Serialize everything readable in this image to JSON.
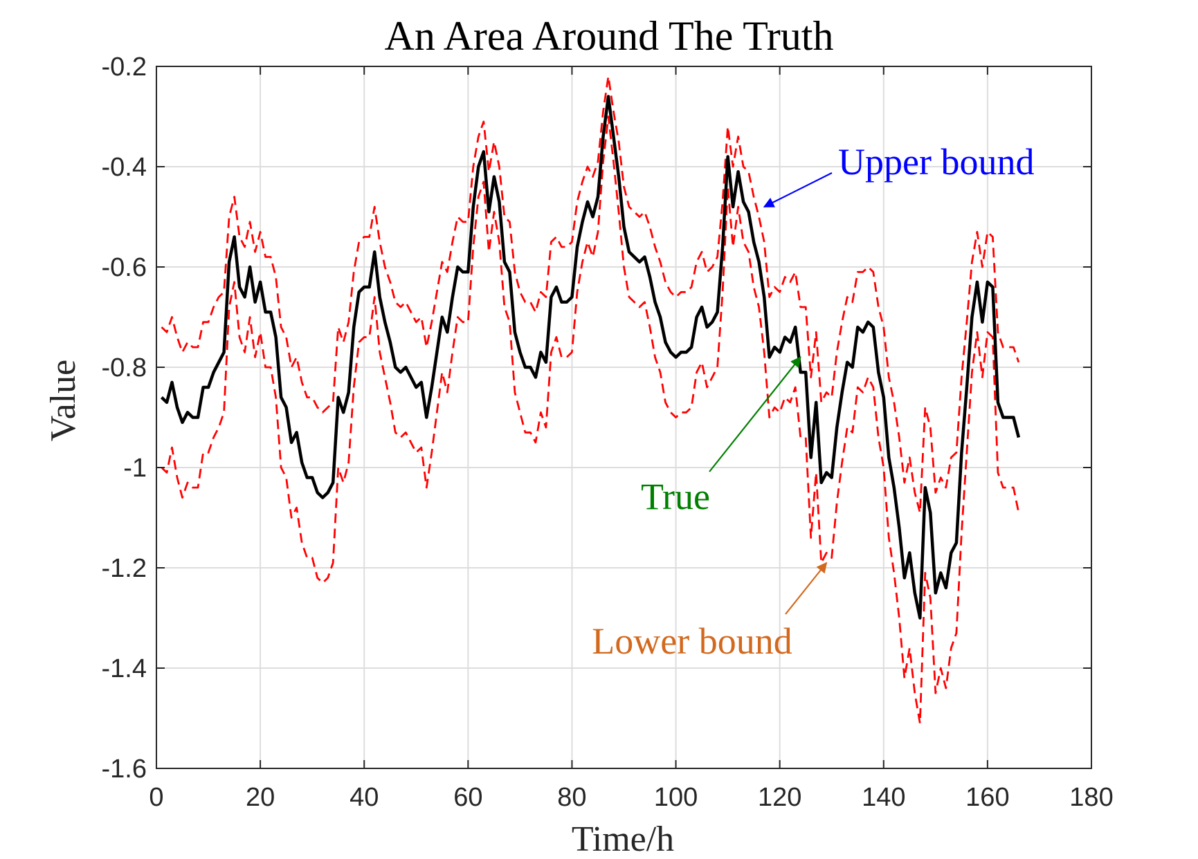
{
  "chart_data": {
    "type": "line",
    "title": "An Area Around The Truth",
    "xlabel": "Time/h",
    "ylabel": "Value",
    "xlim": [
      0,
      180
    ],
    "ylim": [
      -1.6,
      -0.2
    ],
    "xticks": [
      0,
      20,
      40,
      60,
      80,
      100,
      120,
      140,
      160,
      180
    ],
    "yticks": [
      -1.6,
      -1.4,
      -1.2,
      -1,
      -0.8,
      -0.6,
      -0.4,
      -0.2
    ],
    "xtick_labels": [
      "0",
      "20",
      "40",
      "60",
      "80",
      "100",
      "120",
      "140",
      "160",
      "180"
    ],
    "ytick_labels": [
      "-1.6",
      "-1.4",
      "-1.2",
      "-1",
      "-0.8",
      "-0.6",
      "-0.4",
      "-0.2"
    ],
    "grid": true,
    "colors": {
      "true": "#000000",
      "upper": "#ff0000",
      "lower": "#ff0000",
      "grid": "#dddddd"
    },
    "series": [
      {
        "id": "true",
        "style": "solid",
        "values": [
          -0.86,
          -0.87,
          -0.83,
          -0.88,
          -0.91,
          -0.89,
          -0.9,
          -0.9,
          -0.84,
          -0.84,
          -0.81,
          -0.79,
          -0.77,
          -0.59,
          -0.54,
          -0.64,
          -0.66,
          -0.6,
          -0.67,
          -0.63,
          -0.69,
          -0.69,
          -0.74,
          -0.86,
          -0.88,
          -0.95,
          -0.93,
          -0.99,
          -1.02,
          -1.02,
          -1.05,
          -1.06,
          -1.05,
          -1.03,
          -0.86,
          -0.89,
          -0.85,
          -0.72,
          -0.65,
          -0.64,
          -0.64,
          -0.57,
          -0.66,
          -0.71,
          -0.75,
          -0.8,
          -0.81,
          -0.8,
          -0.82,
          -0.84,
          -0.83,
          -0.9,
          -0.84,
          -0.77,
          -0.7,
          -0.73,
          -0.66,
          -0.6,
          -0.61,
          -0.61,
          -0.48,
          -0.4,
          -0.37,
          -0.49,
          -0.42,
          -0.47,
          -0.59,
          -0.61,
          -0.73,
          -0.77,
          -0.8,
          -0.8,
          -0.82,
          -0.77,
          -0.79,
          -0.66,
          -0.64,
          -0.67,
          -0.67,
          -0.66,
          -0.56,
          -0.51,
          -0.47,
          -0.5,
          -0.46,
          -0.34,
          -0.26,
          -0.34,
          -0.42,
          -0.52,
          -0.57,
          -0.58,
          -0.59,
          -0.58,
          -0.62,
          -0.67,
          -0.7,
          -0.75,
          -0.77,
          -0.78,
          -0.77,
          -0.77,
          -0.76,
          -0.7,
          -0.68,
          -0.72,
          -0.71,
          -0.69,
          -0.56,
          -0.38,
          -0.48,
          -0.41,
          -0.47,
          -0.49,
          -0.55,
          -0.59,
          -0.66,
          -0.78,
          -0.76,
          -0.77,
          -0.74,
          -0.75,
          -0.72,
          -0.81,
          -0.81,
          -0.98,
          -0.87,
          -1.03,
          -1.01,
          -1.02,
          -0.92,
          -0.85,
          -0.79,
          -0.8,
          -0.72,
          -0.73,
          -0.71,
          -0.72,
          -0.81,
          -0.86,
          -0.98,
          -1.04,
          -1.12,
          -1.22,
          -1.17,
          -1.25,
          -1.3,
          -1.04,
          -1.09,
          -1.25,
          -1.21,
          -1.24,
          -1.17,
          -1.15,
          -0.97,
          -0.84,
          -0.7,
          -0.63,
          -0.71,
          -0.63,
          -0.64,
          -0.87,
          -0.9,
          -0.9,
          -0.9,
          -0.94
        ]
      },
      {
        "id": "upper",
        "style": "dashed",
        "values": [
          -0.72,
          -0.73,
          -0.7,
          -0.74,
          -0.77,
          -0.75,
          -0.76,
          -0.76,
          -0.71,
          -0.71,
          -0.68,
          -0.66,
          -0.65,
          -0.5,
          -0.46,
          -0.54,
          -0.56,
          -0.51,
          -0.57,
          -0.53,
          -0.58,
          -0.58,
          -0.62,
          -0.72,
          -0.74,
          -0.8,
          -0.78,
          -0.83,
          -0.86,
          -0.86,
          -0.88,
          -0.89,
          -0.88,
          -0.87,
          -0.72,
          -0.75,
          -0.71,
          -0.61,
          -0.55,
          -0.54,
          -0.54,
          -0.48,
          -0.55,
          -0.6,
          -0.63,
          -0.67,
          -0.68,
          -0.67,
          -0.69,
          -0.71,
          -0.7,
          -0.76,
          -0.71,
          -0.65,
          -0.59,
          -0.61,
          -0.55,
          -0.5,
          -0.51,
          -0.51,
          -0.4,
          -0.34,
          -0.31,
          -0.41,
          -0.35,
          -0.4,
          -0.5,
          -0.51,
          -0.61,
          -0.65,
          -0.67,
          -0.67,
          -0.69,
          -0.65,
          -0.66,
          -0.55,
          -0.54,
          -0.56,
          -0.56,
          -0.55,
          -0.47,
          -0.43,
          -0.4,
          -0.42,
          -0.39,
          -0.29,
          -0.22,
          -0.29,
          -0.35,
          -0.44,
          -0.48,
          -0.49,
          -0.5,
          -0.49,
          -0.52,
          -0.56,
          -0.59,
          -0.63,
          -0.65,
          -0.66,
          -0.65,
          -0.65,
          -0.64,
          -0.59,
          -0.57,
          -0.61,
          -0.6,
          -0.58,
          -0.47,
          -0.32,
          -0.4,
          -0.34,
          -0.4,
          -0.41,
          -0.46,
          -0.5,
          -0.55,
          -0.66,
          -0.64,
          -0.65,
          -0.62,
          -0.63,
          -0.61,
          -0.68,
          -0.68,
          -0.82,
          -0.73,
          -0.87,
          -0.85,
          -0.86,
          -0.77,
          -0.71,
          -0.66,
          -0.67,
          -0.61,
          -0.61,
          -0.6,
          -0.61,
          -0.68,
          -0.72,
          -0.82,
          -0.87,
          -0.94,
          -1.03,
          -0.98,
          -1.05,
          -1.09,
          -0.88,
          -0.92,
          -1.05,
          -1.02,
          -1.04,
          -0.98,
          -0.97,
          -0.82,
          -0.71,
          -0.59,
          -0.53,
          -0.6,
          -0.53,
          -0.54,
          -0.73,
          -0.76,
          -0.76,
          -0.76,
          -0.79
        ]
      },
      {
        "id": "lower",
        "style": "dashed",
        "values": [
          -1.0,
          -1.01,
          -0.96,
          -1.02,
          -1.06,
          -1.03,
          -1.04,
          -1.04,
          -0.97,
          -0.97,
          -0.94,
          -0.92,
          -0.89,
          -0.68,
          -0.63,
          -0.74,
          -0.77,
          -0.7,
          -0.78,
          -0.73,
          -0.8,
          -0.8,
          -0.86,
          -1.0,
          -1.02,
          -1.1,
          -1.08,
          -1.15,
          -1.18,
          -1.18,
          -1.22,
          -1.23,
          -1.22,
          -1.19,
          -1.0,
          -1.03,
          -0.99,
          -0.84,
          -0.75,
          -0.74,
          -0.74,
          -0.66,
          -0.77,
          -0.82,
          -0.87,
          -0.93,
          -0.94,
          -0.93,
          -0.95,
          -0.97,
          -0.96,
          -1.04,
          -0.97,
          -0.89,
          -0.81,
          -0.85,
          -0.77,
          -0.7,
          -0.71,
          -0.71,
          -0.56,
          -0.46,
          -0.43,
          -0.57,
          -0.49,
          -0.55,
          -0.68,
          -0.71,
          -0.85,
          -0.89,
          -0.93,
          -0.93,
          -0.95,
          -0.89,
          -0.92,
          -0.77,
          -0.74,
          -0.78,
          -0.78,
          -0.77,
          -0.65,
          -0.59,
          -0.55,
          -0.58,
          -0.53,
          -0.39,
          -0.3,
          -0.39,
          -0.49,
          -0.6,
          -0.66,
          -0.67,
          -0.68,
          -0.67,
          -0.72,
          -0.78,
          -0.81,
          -0.87,
          -0.89,
          -0.9,
          -0.89,
          -0.89,
          -0.88,
          -0.81,
          -0.79,
          -0.84,
          -0.82,
          -0.8,
          -0.65,
          -0.44,
          -0.56,
          -0.48,
          -0.55,
          -0.57,
          -0.64,
          -0.68,
          -0.77,
          -0.9,
          -0.88,
          -0.89,
          -0.86,
          -0.87,
          -0.84,
          -0.94,
          -0.94,
          -1.14,
          -1.01,
          -1.19,
          -1.17,
          -1.18,
          -1.07,
          -0.99,
          -0.92,
          -0.93,
          -0.84,
          -0.85,
          -0.82,
          -0.84,
          -0.94,
          -1.0,
          -1.14,
          -1.21,
          -1.3,
          -1.42,
          -1.36,
          -1.45,
          -1.51,
          -1.21,
          -1.26,
          -1.45,
          -1.4,
          -1.44,
          -1.36,
          -1.33,
          -1.13,
          -0.97,
          -0.81,
          -0.73,
          -0.82,
          -0.73,
          -0.74,
          -1.01,
          -1.04,
          -1.04,
          -1.04,
          -1.09
        ]
      }
    ],
    "annotations": [
      {
        "id": "upper",
        "text": "Upper bound",
        "color": "#0000ff",
        "target": [
          117,
          -0.48
        ]
      },
      {
        "id": "true",
        "text": "True",
        "color": "#008000",
        "target": [
          124,
          -0.78
        ]
      },
      {
        "id": "lower",
        "text": "Lower bound",
        "color": "#d2691e",
        "target": [
          129,
          -1.19
        ]
      }
    ]
  }
}
